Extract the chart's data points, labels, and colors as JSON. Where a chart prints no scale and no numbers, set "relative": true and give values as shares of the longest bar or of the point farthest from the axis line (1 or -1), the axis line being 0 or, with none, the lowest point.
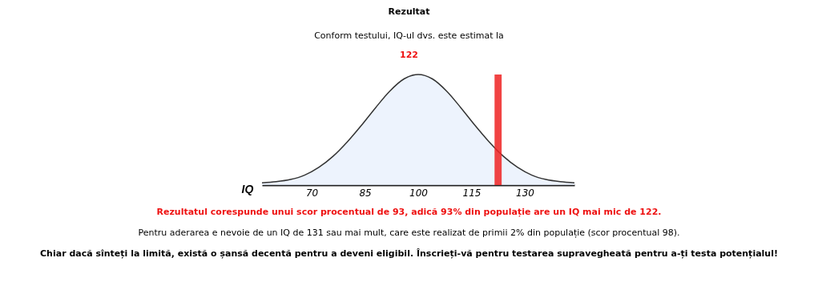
{
  "chart_data": {
    "type": "area",
    "title": "Rezultat",
    "subtitle": "Conform testului, IQ-ul dvs. este estimat la",
    "xlabel": "IQ",
    "relative": true,
    "color": "#e6eefc",
    "x": [
      56,
      60,
      64,
      68,
      72,
      76,
      80,
      84,
      88,
      92,
      96,
      100,
      104,
      108,
      112,
      116,
      120,
      124,
      128,
      132,
      136,
      140,
      144
    ],
    "values": [
      0.02,
      0.03,
      0.05,
      0.09,
      0.16,
      0.26,
      0.39,
      0.54,
      0.7,
      0.85,
      0.96,
      1,
      0.96,
      0.85,
      0.7,
      0.54,
      0.39,
      0.26,
      0.16,
      0.09,
      0.05,
      0.03,
      0.02
    ],
    "xlim": [
      56,
      144
    ],
    "xticks": [
      70,
      85,
      100,
      115,
      130
    ],
    "grid": false,
    "bands": [
      {
        "axis": "x",
        "from": 121.5,
        "to": 123.5,
        "color": "#ee2222"
      }
    ],
    "annotations": [
      "122",
      "Rezultatul corespunde unui scor procentual de 93, adică 93% din populație are un IQ mai mic de 122.",
      "Pentru aderarea e nevoie de un IQ de 131 sau mai mult, care este realizat de primii 2% din populație (scor procentual 98).",
      "Chiar dacă sînteți la limită, există o șansă decentă pentru a deveni eligibil. Înscrieți-vă pentru testarea supravegheată pentru a-ți testa potențialul!"
    ]
  }
}
